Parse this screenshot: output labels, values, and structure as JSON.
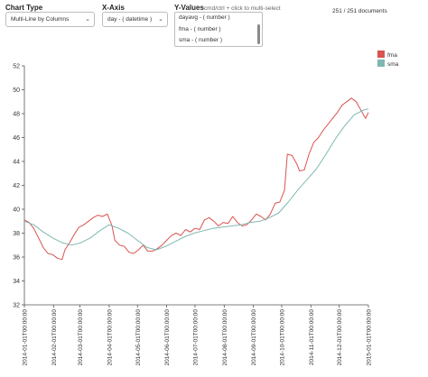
{
  "controls": {
    "chart_type": {
      "label": "Chart Type",
      "value": "Multi-Line by Columns",
      "icon": "chevron-down-icon"
    },
    "x_axis": {
      "label": "X-Axis",
      "value": "day - ( datetime )",
      "icon": "chevron-down-icon"
    },
    "y_values": {
      "label": "Y-Values",
      "hint": "cmd/ctrl + click to multi-select",
      "options": [
        "dayavg - ( number )",
        "fma - ( number )",
        "sma - ( number )"
      ]
    },
    "doc_count": "251 / 251 documents"
  },
  "legend": [
    {
      "name": "fma",
      "color": "#d9534f"
    },
    {
      "name": "sma",
      "color": "#7fb8b2"
    }
  ],
  "chart_data": {
    "type": "line",
    "xlabel": "",
    "ylabel": "",
    "ylim": [
      32,
      52
    ],
    "yticks": [
      "32",
      "34",
      "36",
      "38",
      "40",
      "42",
      "44",
      "46",
      "48",
      "50",
      "52"
    ],
    "grid": false,
    "legend_position": "top-right",
    "x_tick_labels": [
      "2014-01-01T00:00:00",
      "2014-02-01T00:00:00",
      "2014-03-01T00:00:00",
      "2014-04-01T00:00:00",
      "2014-05-01T00:00:00",
      "2014-06-01T00:00:00",
      "2014-07-01T00:00:00",
      "2014-08-01T00:00:00",
      "2014-09-01T00:00:00",
      "2014-10-01T00:00:00",
      "2014-11-01T00:00:00",
      "2014-12-01T00:00:00",
      "2015-01-01T00:00:00"
    ],
    "xlim": [
      "2014-01-01",
      "2015-01-01"
    ],
    "series": [
      {
        "name": "fma",
        "color": "#d9534f",
        "points": [
          [
            "2014-01-01",
            39.1
          ],
          [
            "2014-01-06",
            38.9
          ],
          [
            "2014-01-11",
            38.4
          ],
          [
            "2014-01-16",
            37.6
          ],
          [
            "2014-01-21",
            36.8
          ],
          [
            "2014-01-26",
            36.3
          ],
          [
            "2014-01-31",
            36.2
          ],
          [
            "2014-02-05",
            35.9
          ],
          [
            "2014-02-10",
            35.8
          ],
          [
            "2014-02-13",
            36.6
          ],
          [
            "2014-02-18",
            37.2
          ],
          [
            "2014-02-23",
            37.9
          ],
          [
            "2014-02-28",
            38.5
          ],
          [
            "2014-03-05",
            38.7
          ],
          [
            "2014-03-10",
            39.0
          ],
          [
            "2014-03-15",
            39.3
          ],
          [
            "2014-03-20",
            39.5
          ],
          [
            "2014-03-25",
            39.4
          ],
          [
            "2014-03-30",
            39.6
          ],
          [
            "2014-04-04",
            38.6
          ],
          [
            "2014-04-07",
            37.4
          ],
          [
            "2014-04-12",
            37.0
          ],
          [
            "2014-04-17",
            36.9
          ],
          [
            "2014-04-22",
            36.4
          ],
          [
            "2014-04-27",
            36.3
          ],
          [
            "2014-05-02",
            36.6
          ],
          [
            "2014-05-07",
            37.0
          ],
          [
            "2014-05-12",
            36.5
          ],
          [
            "2014-05-17",
            36.5
          ],
          [
            "2014-05-22",
            36.7
          ],
          [
            "2014-05-27",
            37.0
          ],
          [
            "2014-06-01",
            37.4
          ],
          [
            "2014-06-06",
            37.8
          ],
          [
            "2014-06-11",
            38.0
          ],
          [
            "2014-06-16",
            37.8
          ],
          [
            "2014-06-21",
            38.3
          ],
          [
            "2014-06-26",
            38.1
          ],
          [
            "2014-07-01",
            38.4
          ],
          [
            "2014-07-06",
            38.3
          ],
          [
            "2014-07-11",
            39.1
          ],
          [
            "2014-07-16",
            39.3
          ],
          [
            "2014-07-21",
            39.0
          ],
          [
            "2014-07-26",
            38.6
          ],
          [
            "2014-07-31",
            38.9
          ],
          [
            "2014-08-05",
            38.8
          ],
          [
            "2014-08-10",
            39.4
          ],
          [
            "2014-08-15",
            38.9
          ],
          [
            "2014-08-20",
            38.6
          ],
          [
            "2014-08-25",
            38.7
          ],
          [
            "2014-08-30",
            39.1
          ],
          [
            "2014-09-04",
            39.6
          ],
          [
            "2014-09-09",
            39.4
          ],
          [
            "2014-09-14",
            39.1
          ],
          [
            "2014-09-19",
            39.6
          ],
          [
            "2014-09-24",
            40.5
          ],
          [
            "2014-09-29",
            40.6
          ],
          [
            "2014-10-04",
            41.6
          ],
          [
            "2014-10-07",
            44.6
          ],
          [
            "2014-10-12",
            44.5
          ],
          [
            "2014-10-17",
            43.8
          ],
          [
            "2014-10-20",
            43.2
          ],
          [
            "2014-10-25",
            43.3
          ],
          [
            "2014-10-30",
            44.6
          ],
          [
            "2014-11-04",
            45.6
          ],
          [
            "2014-11-09",
            46.0
          ],
          [
            "2014-11-14",
            46.6
          ],
          [
            "2014-11-19",
            47.1
          ],
          [
            "2014-11-24",
            47.6
          ],
          [
            "2014-11-29",
            48.1
          ],
          [
            "2014-12-04",
            48.7
          ],
          [
            "2014-12-09",
            49.0
          ],
          [
            "2014-12-14",
            49.3
          ],
          [
            "2014-12-19",
            49.0
          ],
          [
            "2014-12-24",
            48.3
          ],
          [
            "2014-12-29",
            47.6
          ],
          [
            "2015-01-01",
            48.1
          ]
        ]
      },
      {
        "name": "sma",
        "color": "#7fb8b2",
        "points": [
          [
            "2014-01-01",
            39.0
          ],
          [
            "2014-01-11",
            38.7
          ],
          [
            "2014-01-21",
            38.1
          ],
          [
            "2014-01-31",
            37.6
          ],
          [
            "2014-02-10",
            37.2
          ],
          [
            "2014-02-20",
            37.0
          ],
          [
            "2014-03-02",
            37.2
          ],
          [
            "2014-03-12",
            37.6
          ],
          [
            "2014-03-22",
            38.2
          ],
          [
            "2014-04-01",
            38.7
          ],
          [
            "2014-04-11",
            38.4
          ],
          [
            "2014-04-21",
            38.0
          ],
          [
            "2014-05-01",
            37.4
          ],
          [
            "2014-05-11",
            36.8
          ],
          [
            "2014-05-21",
            36.6
          ],
          [
            "2014-05-31",
            36.9
          ],
          [
            "2014-06-10",
            37.3
          ],
          [
            "2014-06-20",
            37.7
          ],
          [
            "2014-06-30",
            38.0
          ],
          [
            "2014-07-10",
            38.2
          ],
          [
            "2014-07-20",
            38.4
          ],
          [
            "2014-07-30",
            38.5
          ],
          [
            "2014-08-09",
            38.6
          ],
          [
            "2014-08-19",
            38.7
          ],
          [
            "2014-08-29",
            38.9
          ],
          [
            "2014-09-08",
            39.0
          ],
          [
            "2014-09-18",
            39.3
          ],
          [
            "2014-09-28",
            39.7
          ],
          [
            "2014-10-08",
            40.6
          ],
          [
            "2014-10-18",
            41.6
          ],
          [
            "2014-10-28",
            42.5
          ],
          [
            "2014-11-07",
            43.4
          ],
          [
            "2014-11-17",
            44.6
          ],
          [
            "2014-11-27",
            45.9
          ],
          [
            "2014-12-07",
            47.0
          ],
          [
            "2014-12-17",
            47.9
          ],
          [
            "2014-12-27",
            48.3
          ],
          [
            "2015-01-01",
            48.4
          ]
        ]
      }
    ]
  }
}
